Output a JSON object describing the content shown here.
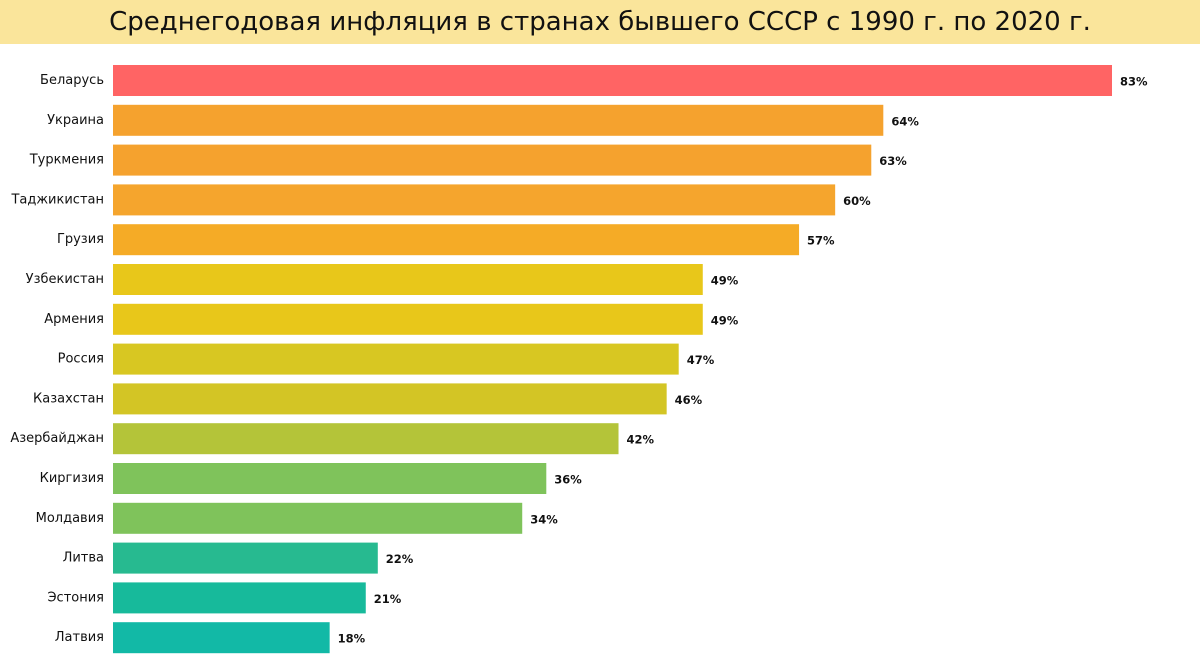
{
  "chart_data": {
    "type": "bar",
    "orientation": "horizontal",
    "title": "Среднегодовая инфляция в странах бывшего СССР с 1990 г. по 2020 г.",
    "categories": [
      "Беларусь",
      "Украина",
      "Туркмения",
      "Таджикистан",
      "Грузия",
      "Узбекистан",
      "Армения",
      "Россия",
      "Казахстан",
      "Азербайджан",
      "Киргизия",
      "Молдавия",
      "Литва",
      "Эстония",
      "Латвия"
    ],
    "values": [
      83,
      64,
      63,
      60,
      57,
      49,
      49,
      47,
      46,
      42,
      36,
      34,
      22,
      21,
      18
    ],
    "value_labels": [
      "83%",
      "64%",
      "63%",
      "60%",
      "57%",
      "49%",
      "49%",
      "47%",
      "46%",
      "42%",
      "36%",
      "34%",
      "22%",
      "21%",
      "18%"
    ],
    "colors": [
      "#ff6464",
      "#f5a22e",
      "#f5a22e",
      "#f5a52d",
      "#f5ab26",
      "#e8c71a",
      "#e8c71a",
      "#d8c722",
      "#d3c525",
      "#b4c439",
      "#7fc35b",
      "#7fc35b",
      "#27ba90",
      "#17ba9b",
      "#12b9a6"
    ],
    "xlim": [
      0,
      83
    ],
    "xlabel": "",
    "ylabel": "",
    "grid": false,
    "legend": "none"
  },
  "title_bar_color": "#fae59b"
}
